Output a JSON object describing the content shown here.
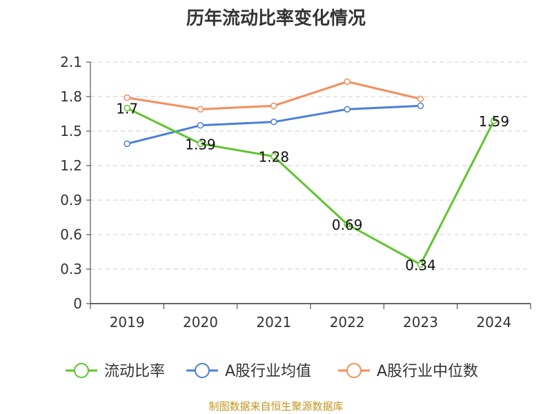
{
  "chart_data": {
    "type": "line",
    "title": "历年流动比率变化情况",
    "categories": [
      "2019",
      "2020",
      "2021",
      "2022",
      "2023",
      "2024"
    ],
    "y_ticks": [
      "0",
      "0.3",
      "0.6",
      "0.9",
      "1.2",
      "1.5",
      "1.8",
      "2.1"
    ],
    "ylim": [
      0,
      2.1
    ],
    "grid": true,
    "legend_position": "bottom",
    "series": [
      {
        "name": "流动比率",
        "color": "#5cc52a",
        "values": [
          1.7,
          1.39,
          1.28,
          0.69,
          0.34,
          1.59
        ],
        "labels": [
          "1.7",
          "1.39",
          "1.28",
          "0.69",
          "0.34",
          "1.59"
        ]
      },
      {
        "name": "A股行业均值",
        "color": "#4a7fd8",
        "values": [
          1.39,
          1.55,
          1.58,
          1.69,
          1.72,
          null
        ]
      },
      {
        "name": "A股行业中位数",
        "color": "#f68c5a",
        "values": [
          1.79,
          1.69,
          1.72,
          1.93,
          1.78,
          null
        ]
      }
    ],
    "source": "制图数据来自恒生聚源数据库"
  }
}
